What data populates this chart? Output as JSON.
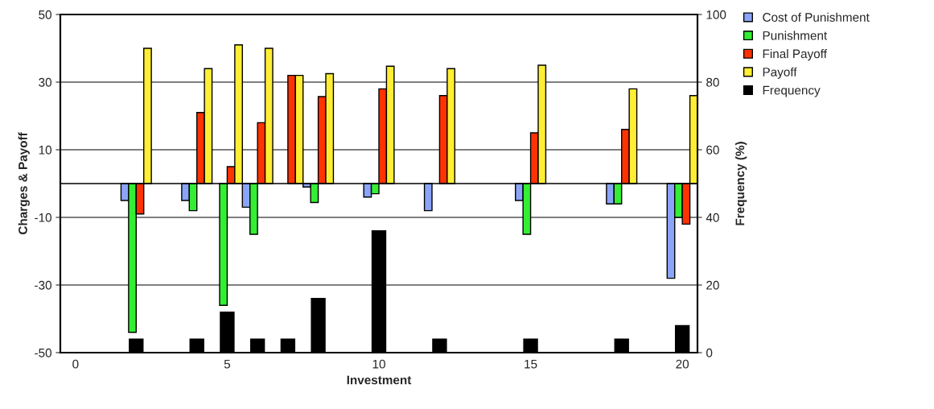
{
  "chart_data": {
    "type": "bar",
    "xlabel": "Investment",
    "ylabel": "Charges & Payoff",
    "y2label": "Frequency (%)",
    "categories": [
      "0",
      null,
      null,
      null,
      null,
      "5",
      null,
      null,
      null,
      null,
      "10",
      null,
      null,
      null,
      null,
      "15",
      null,
      null,
      null,
      null,
      "20"
    ],
    "series": [
      {
        "name": "Cost of Punishment",
        "color": "#8aa4f8",
        "values": [
          null,
          null,
          -5,
          null,
          -5,
          null,
          -7,
          null,
          -1,
          null,
          -4,
          null,
          -8,
          null,
          null,
          -5,
          null,
          null,
          -6,
          null,
          -28
        ]
      },
      {
        "name": "Punishment",
        "color": "#33ee33",
        "values": [
          null,
          null,
          -44,
          null,
          -8,
          -36,
          -15,
          null,
          -5.6,
          null,
          -3,
          null,
          null,
          null,
          null,
          -15,
          null,
          null,
          -6,
          null,
          -10
        ]
      },
      {
        "name": "Final Payoff",
        "color": "#ff3300",
        "values": [
          null,
          null,
          -9,
          null,
          21,
          5,
          18,
          32,
          25.7,
          null,
          28,
          null,
          26,
          null,
          null,
          15,
          null,
          null,
          16,
          null,
          -12
        ]
      },
      {
        "name": "Payoff",
        "color": "#ffee33",
        "values": [
          null,
          null,
          40,
          null,
          34,
          41,
          40,
          32,
          32.5,
          null,
          34.7,
          null,
          34,
          null,
          null,
          35,
          null,
          null,
          28,
          null,
          26
        ]
      },
      {
        "name": "Frequency",
        "color": "#000000",
        "axis": "y2",
        "values": [
          null,
          null,
          4,
          null,
          4,
          12,
          4,
          4,
          16,
          null,
          36,
          null,
          4,
          null,
          null,
          4,
          null,
          null,
          4,
          null,
          8
        ]
      }
    ],
    "ylim": [
      -50,
      50
    ],
    "yticks": [
      -50,
      -30,
      -10,
      10,
      30,
      50
    ],
    "y2lim": [
      0,
      100
    ],
    "y2ticks": [
      0,
      20,
      40,
      60,
      80,
      100
    ],
    "grid": "y",
    "legend": "right"
  }
}
